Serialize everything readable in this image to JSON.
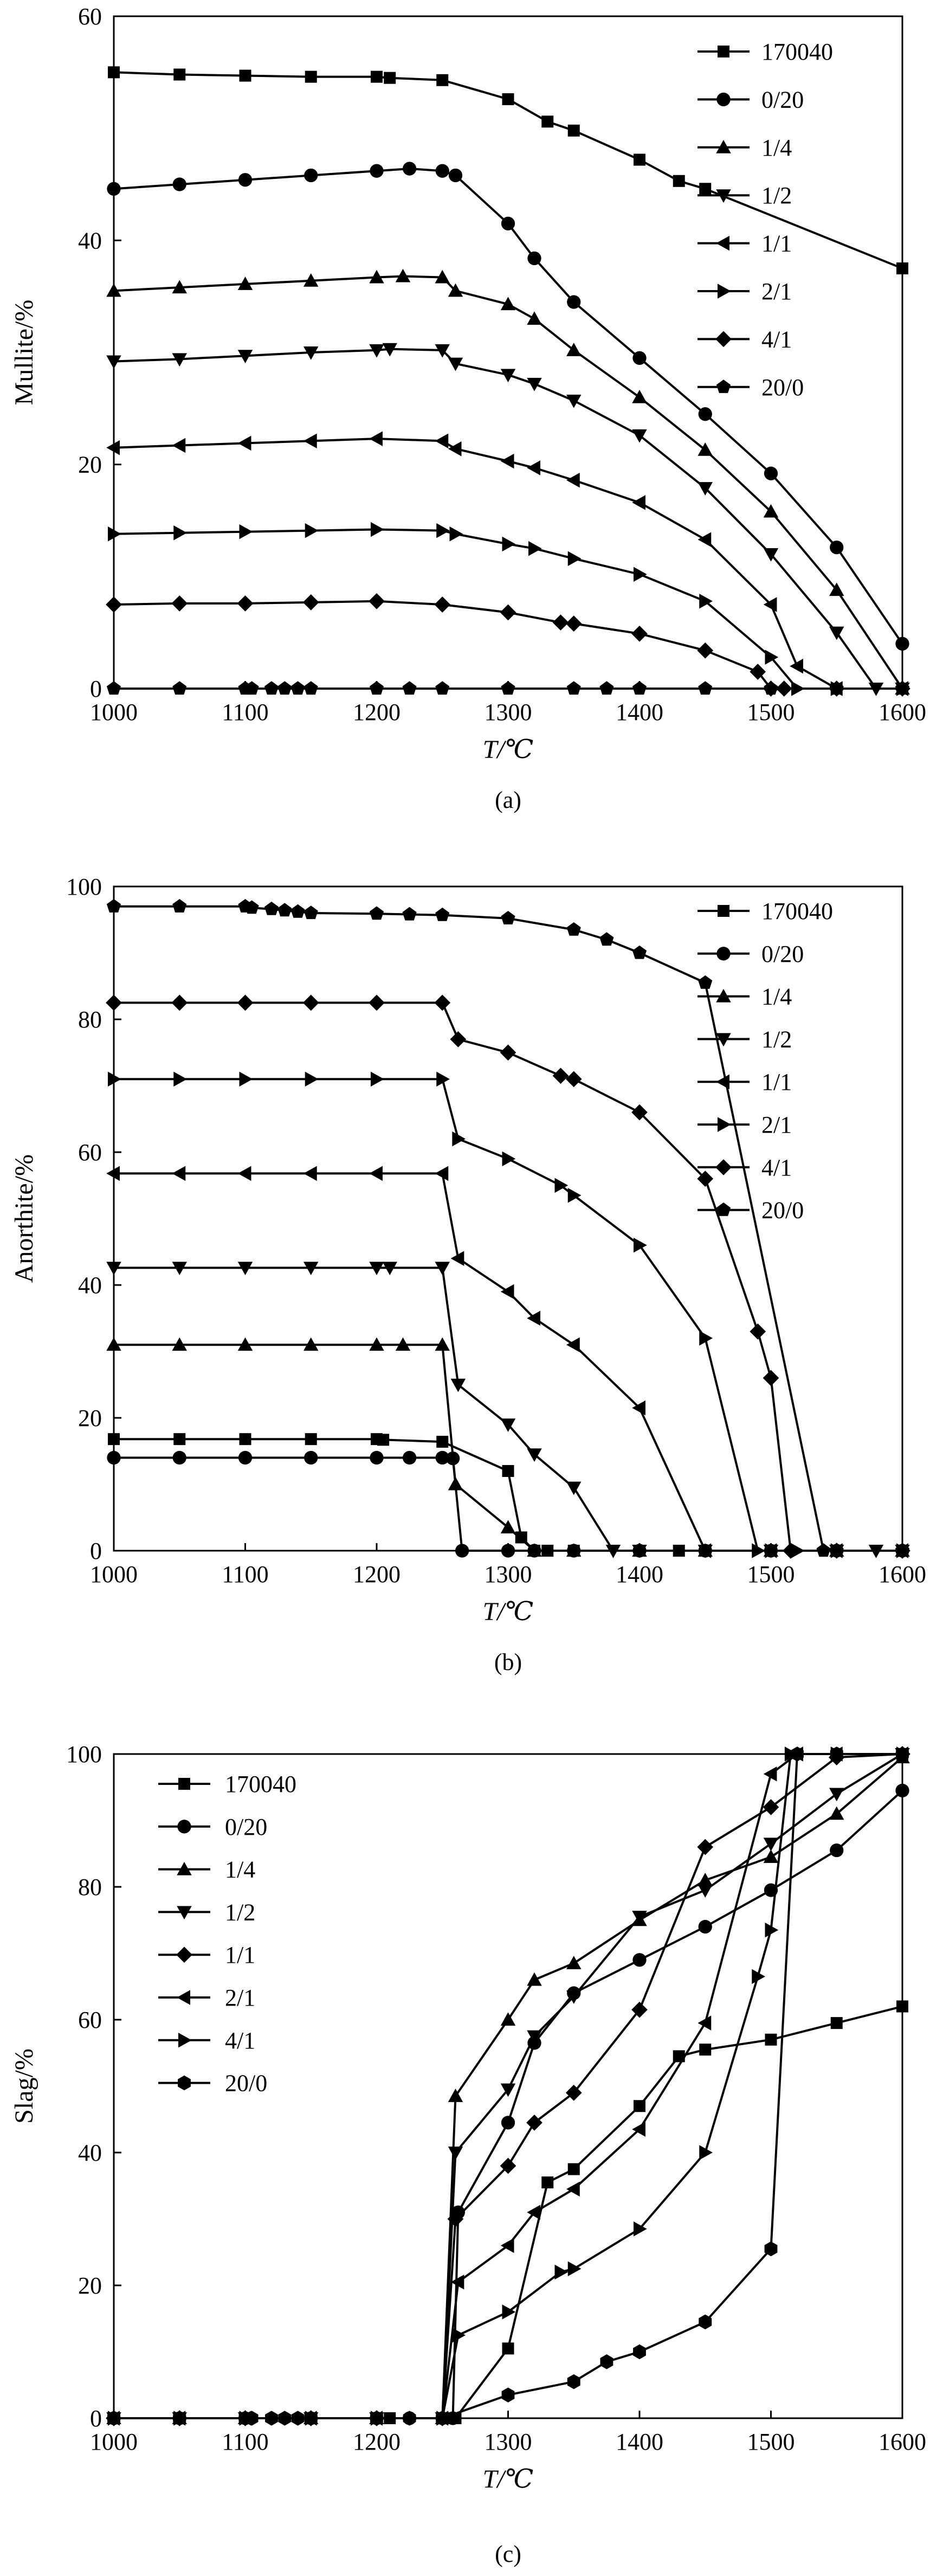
{
  "chart_data": [
    {
      "type": "line",
      "caption": "(a)",
      "xlabel": "T/℃",
      "ylabel": "Mullite/%",
      "xlim": [
        1000,
        1600
      ],
      "ylim": [
        0,
        60
      ],
      "xticks": [
        1000,
        1100,
        1200,
        1300,
        1400,
        1500,
        1600
      ],
      "yticks": [
        0,
        20,
        40,
        60
      ],
      "grid": false,
      "legend_position": "top-right",
      "series": [
        {
          "name": "170040",
          "marker": "square",
          "x": [
            1000,
            1050,
            1100,
            1150,
            1200,
            1210,
            1250,
            1300,
            1330,
            1350,
            1400,
            1430,
            1450,
            1600
          ],
          "y": [
            55.0,
            54.8,
            54.7,
            54.6,
            54.6,
            54.5,
            54.3,
            52.6,
            50.6,
            49.8,
            47.2,
            45.3,
            44.6,
            37.5
          ]
        },
        {
          "name": "0/20",
          "marker": "circle",
          "x": [
            1000,
            1050,
            1100,
            1150,
            1200,
            1225,
            1250,
            1260,
            1300,
            1320,
            1350,
            1400,
            1450,
            1500,
            1550,
            1600
          ],
          "y": [
            44.6,
            45.0,
            45.4,
            45.8,
            46.2,
            46.4,
            46.2,
            45.8,
            41.5,
            38.4,
            34.5,
            29.5,
            24.5,
            19.2,
            12.6,
            4.0
          ]
        },
        {
          "name": "1/4",
          "marker": "triangle-up",
          "x": [
            1000,
            1050,
            1100,
            1150,
            1200,
            1220,
            1250,
            1260,
            1300,
            1320,
            1350,
            1400,
            1450,
            1500,
            1550,
            1600
          ],
          "y": [
            35.5,
            35.8,
            36.1,
            36.4,
            36.7,
            36.8,
            36.7,
            35.5,
            34.3,
            33.0,
            30.2,
            26.0,
            21.3,
            15.8,
            8.8,
            0.0
          ]
        },
        {
          "name": "1/2",
          "marker": "triangle-down",
          "x": [
            1000,
            1050,
            1100,
            1150,
            1200,
            1210,
            1250,
            1260,
            1300,
            1320,
            1350,
            1400,
            1450,
            1500,
            1550,
            1580,
            1600
          ],
          "y": [
            29.2,
            29.4,
            29.7,
            30.0,
            30.2,
            30.3,
            30.2,
            29.0,
            28.0,
            27.2,
            25.7,
            22.6,
            17.9,
            12.0,
            5.0,
            0.0,
            0.0
          ]
        },
        {
          "name": "1/1",
          "marker": "triangle-left",
          "x": [
            1000,
            1050,
            1100,
            1150,
            1200,
            1250,
            1260,
            1300,
            1320,
            1350,
            1400,
            1450,
            1500,
            1520,
            1550,
            1600
          ],
          "y": [
            21.5,
            21.7,
            21.9,
            22.1,
            22.3,
            22.1,
            21.4,
            20.3,
            19.7,
            18.6,
            16.6,
            13.3,
            7.5,
            2.0,
            0.0,
            0.0
          ]
        },
        {
          "name": "2/1",
          "marker": "triangle-right",
          "x": [
            1000,
            1050,
            1100,
            1150,
            1200,
            1250,
            1260,
            1300,
            1320,
            1350,
            1400,
            1450,
            1500,
            1520,
            1550,
            1600
          ],
          "y": [
            13.8,
            13.9,
            14.0,
            14.1,
            14.2,
            14.1,
            13.8,
            12.9,
            12.5,
            11.6,
            10.2,
            7.8,
            2.8,
            0.0,
            0.0,
            0.0
          ]
        },
        {
          "name": "4/1",
          "marker": "diamond",
          "x": [
            1000,
            1050,
            1100,
            1150,
            1200,
            1250,
            1300,
            1340,
            1350,
            1400,
            1450,
            1490,
            1500,
            1510,
            1550,
            1600
          ],
          "y": [
            7.5,
            7.6,
            7.6,
            7.7,
            7.8,
            7.5,
            6.8,
            5.9,
            5.8,
            4.9,
            3.4,
            1.5,
            0.0,
            0.0,
            0.0,
            0.0
          ]
        },
        {
          "name": "20/0",
          "marker": "pentagon",
          "x": [
            1000,
            1050,
            1100,
            1105,
            1120,
            1130,
            1140,
            1150,
            1200,
            1225,
            1250,
            1300,
            1350,
            1375,
            1400,
            1450,
            1500,
            1550,
            1600
          ],
          "y": [
            0.0,
            0.0,
            0.0,
            0.0,
            0.0,
            0.0,
            0.0,
            0.0,
            0.0,
            0.0,
            0.0,
            0.0,
            0.0,
            0.0,
            0.0,
            0.0,
            0.0,
            0.0,
            0.0
          ]
        }
      ]
    },
    {
      "type": "line",
      "caption": "(b)",
      "xlabel": "T/℃",
      "ylabel": "Anorthite/%",
      "xlim": [
        1000,
        1600
      ],
      "ylim": [
        0,
        100
      ],
      "xticks": [
        1000,
        1100,
        1200,
        1300,
        1400,
        1500,
        1600
      ],
      "yticks": [
        0,
        20,
        40,
        60,
        80,
        100
      ],
      "grid": false,
      "legend_position": "top-right",
      "series": [
        {
          "name": "170040",
          "marker": "square",
          "x": [
            1000,
            1050,
            1100,
            1150,
            1200,
            1205,
            1250,
            1300,
            1310,
            1320,
            1330,
            1350,
            1400,
            1430,
            1450,
            1500,
            1600
          ],
          "y": [
            16.8,
            16.8,
            16.8,
            16.8,
            16.8,
            16.7,
            16.4,
            12.0,
            2.0,
            0.0,
            0.0,
            0.0,
            0.0,
            0.0,
            0.0,
            0.0,
            0.0
          ]
        },
        {
          "name": "0/20",
          "marker": "circle",
          "x": [
            1000,
            1050,
            1100,
            1150,
            1200,
            1225,
            1250,
            1258,
            1265,
            1300,
            1320,
            1350,
            1400,
            1450,
            1500,
            1550,
            1600
          ],
          "y": [
            14.0,
            14.0,
            14.0,
            14.0,
            14.0,
            14.0,
            14.0,
            13.9,
            0.0,
            0.0,
            0.0,
            0.0,
            0.0,
            0.0,
            0.0,
            0.0,
            0.0
          ]
        },
        {
          "name": "1/4",
          "marker": "triangle-up",
          "x": [
            1000,
            1050,
            1100,
            1150,
            1200,
            1220,
            1250,
            1260,
            1300,
            1320,
            1350,
            1400,
            1450,
            1500,
            1550,
            1600
          ],
          "y": [
            31.0,
            31.0,
            31.0,
            31.0,
            31.0,
            31.0,
            31.0,
            10.0,
            3.5,
            0.0,
            0.0,
            0.0,
            0.0,
            0.0,
            0.0,
            0.0
          ]
        },
        {
          "name": "1/2",
          "marker": "triangle-down",
          "x": [
            1000,
            1050,
            1100,
            1150,
            1200,
            1210,
            1250,
            1262,
            1300,
            1320,
            1350,
            1380,
            1400,
            1450,
            1500,
            1550,
            1580,
            1600
          ],
          "y": [
            42.6,
            42.6,
            42.6,
            42.6,
            42.6,
            42.6,
            42.6,
            25.0,
            19.0,
            14.5,
            9.5,
            0.0,
            0.0,
            0.0,
            0.0,
            0.0,
            0.0,
            0.0
          ]
        },
        {
          "name": "1/1",
          "marker": "triangle-left",
          "x": [
            1000,
            1050,
            1100,
            1150,
            1200,
            1250,
            1262,
            1300,
            1320,
            1350,
            1400,
            1450,
            1500,
            1550,
            1600
          ],
          "y": [
            56.8,
            56.8,
            56.8,
            56.8,
            56.8,
            56.8,
            44.0,
            39.0,
            35.0,
            31.0,
            21.5,
            0.0,
            0.0,
            0.0,
            0.0
          ]
        },
        {
          "name": "2/1",
          "marker": "triangle-right",
          "x": [
            1000,
            1050,
            1100,
            1150,
            1200,
            1250,
            1262,
            1300,
            1340,
            1350,
            1400,
            1450,
            1490,
            1500,
            1520,
            1550,
            1600
          ],
          "y": [
            71.0,
            71.0,
            71.0,
            71.0,
            71.0,
            71.0,
            62.0,
            59.0,
            55.0,
            53.5,
            46.0,
            32.0,
            0.0,
            0.0,
            0.0,
            0.0,
            0.0
          ]
        },
        {
          "name": "4/1",
          "marker": "diamond",
          "x": [
            1000,
            1050,
            1100,
            1150,
            1200,
            1250,
            1262,
            1300,
            1340,
            1350,
            1400,
            1450,
            1490,
            1500,
            1515,
            1550,
            1600
          ],
          "y": [
            82.5,
            82.5,
            82.5,
            82.5,
            82.5,
            82.5,
            77.0,
            75.0,
            71.5,
            71.0,
            66.0,
            56.0,
            33.0,
            26.0,
            0.0,
            0.0,
            0.0
          ]
        },
        {
          "name": "20/0",
          "marker": "pentagon",
          "x": [
            1000,
            1050,
            1100,
            1105,
            1120,
            1130,
            1140,
            1150,
            1200,
            1225,
            1250,
            1300,
            1350,
            1375,
            1400,
            1450,
            1540,
            1550,
            1600
          ],
          "y": [
            97.0,
            97.0,
            97.0,
            96.8,
            96.6,
            96.4,
            96.2,
            96.0,
            95.9,
            95.8,
            95.7,
            95.2,
            93.5,
            92.0,
            90.0,
            85.5,
            0.0,
            0.0,
            0.0
          ]
        }
      ]
    },
    {
      "type": "line",
      "caption": "(c)",
      "xlabel": "T/℃",
      "ylabel": "Slag/%",
      "xlim": [
        1000,
        1600
      ],
      "ylim": [
        0,
        100
      ],
      "xticks": [
        1000,
        1100,
        1200,
        1300,
        1400,
        1500,
        1600
      ],
      "yticks": [
        0,
        20,
        40,
        60,
        80,
        100
      ],
      "grid": false,
      "legend_position": "top-left",
      "series": [
        {
          "name": "170040",
          "marker": "square",
          "x": [
            1000,
            1050,
            1100,
            1150,
            1200,
            1210,
            1250,
            1260,
            1300,
            1330,
            1350,
            1400,
            1430,
            1450,
            1500,
            1550,
            1600
          ],
          "y": [
            0,
            0,
            0,
            0,
            0,
            0,
            0,
            0,
            10.5,
            35.5,
            37.5,
            47.0,
            54.5,
            55.5,
            57.0,
            59.5,
            62.0
          ]
        },
        {
          "name": "0/20",
          "marker": "circle",
          "x": [
            1000,
            1050,
            1100,
            1150,
            1200,
            1225,
            1250,
            1258,
            1262,
            1300,
            1320,
            1350,
            1400,
            1450,
            1500,
            1550,
            1600
          ],
          "y": [
            0,
            0,
            0,
            0,
            0,
            0,
            0,
            0,
            31.0,
            44.5,
            56.5,
            64.0,
            69.0,
            74.0,
            79.5,
            85.5,
            94.5
          ]
        },
        {
          "name": "1/4",
          "marker": "triangle-up",
          "x": [
            1000,
            1050,
            1100,
            1150,
            1200,
            1250,
            1260,
            1300,
            1320,
            1350,
            1400,
            1450,
            1500,
            1550,
            1600
          ],
          "y": [
            0,
            0,
            0,
            0,
            0,
            0,
            48.5,
            60.0,
            66.0,
            68.5,
            75.0,
            81.0,
            84.5,
            91.0,
            99.5
          ]
        },
        {
          "name": "1/2",
          "marker": "triangle-down",
          "x": [
            1000,
            1050,
            1100,
            1150,
            1200,
            1250,
            1260,
            1300,
            1320,
            1350,
            1400,
            1450,
            1500,
            1550,
            1600
          ],
          "y": [
            0,
            0,
            0,
            0,
            0,
            0,
            40.0,
            49.5,
            57.5,
            63.5,
            75.5,
            79.5,
            86.5,
            94.0,
            100.0
          ]
        },
        {
          "name": "1/1",
          "marker": "diamond",
          "x": [
            1000,
            1050,
            1100,
            1150,
            1200,
            1250,
            1260,
            1300,
            1320,
            1350,
            1400,
            1450,
            1500,
            1550,
            1600
          ],
          "y": [
            0,
            0,
            0,
            0,
            0,
            0,
            30.0,
            38.0,
            44.5,
            49.0,
            61.5,
            86.0,
            92.0,
            99.5,
            100.0
          ]
        },
        {
          "name": "2/1",
          "marker": "triangle-left",
          "x": [
            1000,
            1050,
            1100,
            1150,
            1200,
            1250,
            1262,
            1300,
            1320,
            1350,
            1400,
            1450,
            1500,
            1520,
            1550,
            1600
          ],
          "y": [
            0,
            0,
            0,
            0,
            0,
            0,
            20.5,
            26.0,
            31.0,
            34.5,
            43.5,
            59.5,
            97.0,
            100.0,
            100.0,
            100.0
          ]
        },
        {
          "name": "4/1",
          "marker": "triangle-right",
          "x": [
            1000,
            1050,
            1100,
            1150,
            1200,
            1250,
            1262,
            1300,
            1340,
            1350,
            1400,
            1450,
            1490,
            1500,
            1515,
            1550,
            1600
          ],
          "y": [
            0,
            0,
            0,
            0,
            0,
            0,
            12.5,
            16.0,
            22.0,
            22.5,
            28.5,
            40.0,
            66.5,
            73.5,
            100.0,
            100.0,
            100.0
          ]
        },
        {
          "name": "20/0",
          "marker": "hexagon",
          "x": [
            1000,
            1050,
            1100,
            1105,
            1120,
            1130,
            1140,
            1150,
            1200,
            1225,
            1250,
            1300,
            1350,
            1375,
            1400,
            1450,
            1500,
            1520,
            1550,
            1600
          ],
          "y": [
            0,
            0,
            0,
            0,
            0,
            0,
            0,
            0,
            0,
            0,
            0,
            3.5,
            5.5,
            8.5,
            10.0,
            14.5,
            25.5,
            100.0,
            100.0,
            100.0
          ]
        }
      ]
    }
  ]
}
